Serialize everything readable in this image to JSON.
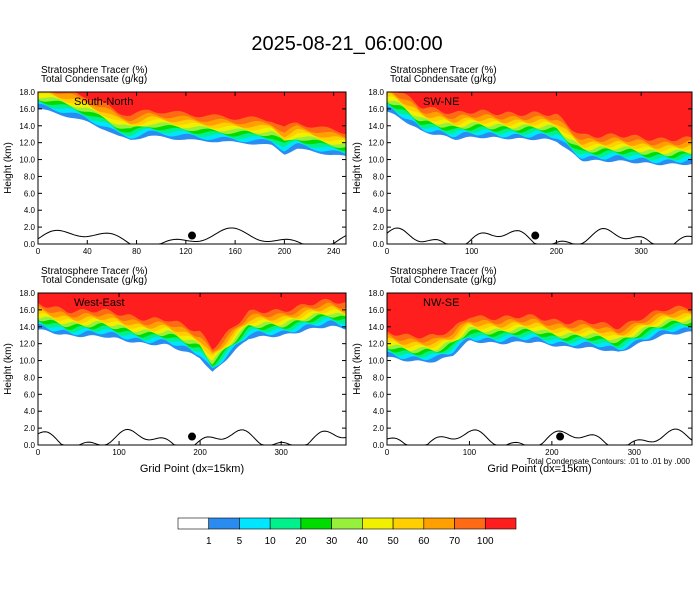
{
  "title": "2025-08-21_06:00:00",
  "colors": {
    "levels": [
      "#ffffff",
      "#2a8cf0",
      "#00e6ff",
      "#00f08c",
      "#00dc00",
      "#96f03c",
      "#f0f000",
      "#ffcf00",
      "#ffa000",
      "#ff6a14",
      "#ff1e1e"
    ],
    "contour": "#000000",
    "marker": "#000000"
  },
  "colorbar": {
    "labels": [
      "1",
      "5",
      "10",
      "20",
      "30",
      "40",
      "50",
      "60",
      "70",
      "100"
    ]
  },
  "footnote": "Total Condensate Contours: .01 to .01 by .000",
  "chart_data": [
    {
      "type": "heatmap",
      "panel_label": "South-North",
      "header_line1": "Stratosphere Tracer   (%)",
      "header_line2": "Total Condensate   (g/kg)",
      "ylabel": "Height (km)",
      "xlabel": "",
      "xlim": [
        0,
        250
      ],
      "ylim": [
        0,
        18
      ],
      "xticks": [
        "0",
        "40",
        "80",
        "120",
        "160",
        "200",
        "240"
      ],
      "xtick_values": [
        0,
        40,
        80,
        120,
        160,
        200,
        240
      ],
      "yticks": [
        "0.0",
        "2.0",
        "4.0",
        "6.0",
        "8.0",
        "10.0",
        "12.0",
        "14.0",
        "16.0",
        "18.0"
      ],
      "ytick_values": [
        0,
        2,
        4,
        6,
        8,
        10,
        12,
        14,
        16,
        18
      ],
      "tracer_bottom_km": [
        [
          0,
          16
        ],
        [
          20,
          15.2
        ],
        [
          40,
          14.4
        ],
        [
          55,
          13.6
        ],
        [
          65,
          12.8
        ],
        [
          75,
          12.4
        ],
        [
          90,
          12.8
        ],
        [
          110,
          12.4
        ],
        [
          130,
          12.2
        ],
        [
          150,
          12.2
        ],
        [
          170,
          12.0
        ],
        [
          190,
          11.6
        ],
        [
          200,
          10.6
        ],
        [
          210,
          11.2
        ],
        [
          230,
          10.8
        ],
        [
          250,
          10.4
        ]
      ],
      "marker": [
        125,
        1.0
      ]
    },
    {
      "type": "heatmap",
      "panel_label": "SW-NE",
      "header_line1": "Stratosphere Tracer   (%)",
      "header_line2": "Total Condensate   (g/kg)",
      "ylabel": "Height (km)",
      "xlabel": "",
      "xlim": [
        0,
        360
      ],
      "ylim": [
        0,
        18
      ],
      "xticks": [
        "0",
        "100",
        "200",
        "300"
      ],
      "xtick_values": [
        0,
        100,
        200,
        300
      ],
      "yticks": [
        "0.0",
        "2.0",
        "4.0",
        "6.0",
        "8.0",
        "10.0",
        "12.0",
        "14.0",
        "16.0",
        "18.0"
      ],
      "ytick_values": [
        0,
        2,
        4,
        6,
        8,
        10,
        12,
        14,
        16,
        18
      ],
      "tracer_bottom_km": [
        [
          0,
          15.6
        ],
        [
          20,
          14.6
        ],
        [
          40,
          13.4
        ],
        [
          60,
          13.0
        ],
        [
          80,
          12.4
        ],
        [
          110,
          12.6
        ],
        [
          140,
          12.6
        ],
        [
          170,
          12.4
        ],
        [
          200,
          12.2
        ],
        [
          215,
          11.0
        ],
        [
          230,
          10.0
        ],
        [
          260,
          9.8
        ],
        [
          300,
          9.6
        ],
        [
          360,
          9.4
        ]
      ],
      "marker": [
        175,
        1.0
      ]
    },
    {
      "type": "heatmap",
      "panel_label": "West-East",
      "header_line1": "Stratosphere Tracer   (%)",
      "header_line2": "Total Condensate   (g/kg)",
      "ylabel": "Height (km)",
      "xlabel": "Grid Point (dx=15km)",
      "xlim": [
        0,
        380
      ],
      "ylim": [
        0,
        18
      ],
      "xticks": [
        "0",
        "100",
        "200",
        "300"
      ],
      "xtick_values": [
        0,
        100,
        200,
        300
      ],
      "yticks": [
        "0.0",
        "2.0",
        "4.0",
        "6.0",
        "8.0",
        "10.0",
        "12.0",
        "14.0",
        "16.0",
        "18.0"
      ],
      "ytick_values": [
        0,
        2,
        4,
        6,
        8,
        10,
        12,
        14,
        16,
        18
      ],
      "tracer_bottom_km": [
        [
          0,
          13.6
        ],
        [
          40,
          13.0
        ],
        [
          80,
          12.8
        ],
        [
          120,
          12.2
        ],
        [
          160,
          11.8
        ],
        [
          180,
          11.0
        ],
        [
          200,
          10.4
        ],
        [
          215,
          8.6
        ],
        [
          230,
          10.0
        ],
        [
          260,
          12.6
        ],
        [
          300,
          13.0
        ],
        [
          330,
          13.6
        ],
        [
          360,
          14.0
        ],
        [
          380,
          13.8
        ]
      ],
      "marker": [
        190,
        1.0
      ]
    },
    {
      "type": "heatmap",
      "panel_label": "NW-SE",
      "header_line1": "Stratosphere Tracer   (%)",
      "header_line2": "Total Condensate   (g/kg)",
      "ylabel": "Height (km)",
      "xlabel": "Grid Point (dx=15km)",
      "xlim": [
        0,
        370
      ],
      "ylim": [
        0,
        18
      ],
      "xticks": [
        "0",
        "100",
        "200",
        "300"
      ],
      "xtick_values": [
        0,
        100,
        200,
        300
      ],
      "yticks": [
        "0.0",
        "2.0",
        "4.0",
        "6.0",
        "8.0",
        "10.0",
        "12.0",
        "14.0",
        "16.0",
        "18.0"
      ],
      "ytick_values": [
        0,
        2,
        4,
        6,
        8,
        10,
        12,
        14,
        16,
        18
      ],
      "tracer_bottom_km": [
        [
          0,
          10.4
        ],
        [
          30,
          10.0
        ],
        [
          60,
          9.8
        ],
        [
          80,
          10.6
        ],
        [
          100,
          12.4
        ],
        [
          140,
          12.0
        ],
        [
          180,
          12.2
        ],
        [
          220,
          11.6
        ],
        [
          250,
          11.4
        ],
        [
          280,
          11.0
        ],
        [
          310,
          12.2
        ],
        [
          340,
          13.0
        ],
        [
          370,
          13.4
        ]
      ],
      "marker": [
        210,
        1.0
      ]
    }
  ]
}
